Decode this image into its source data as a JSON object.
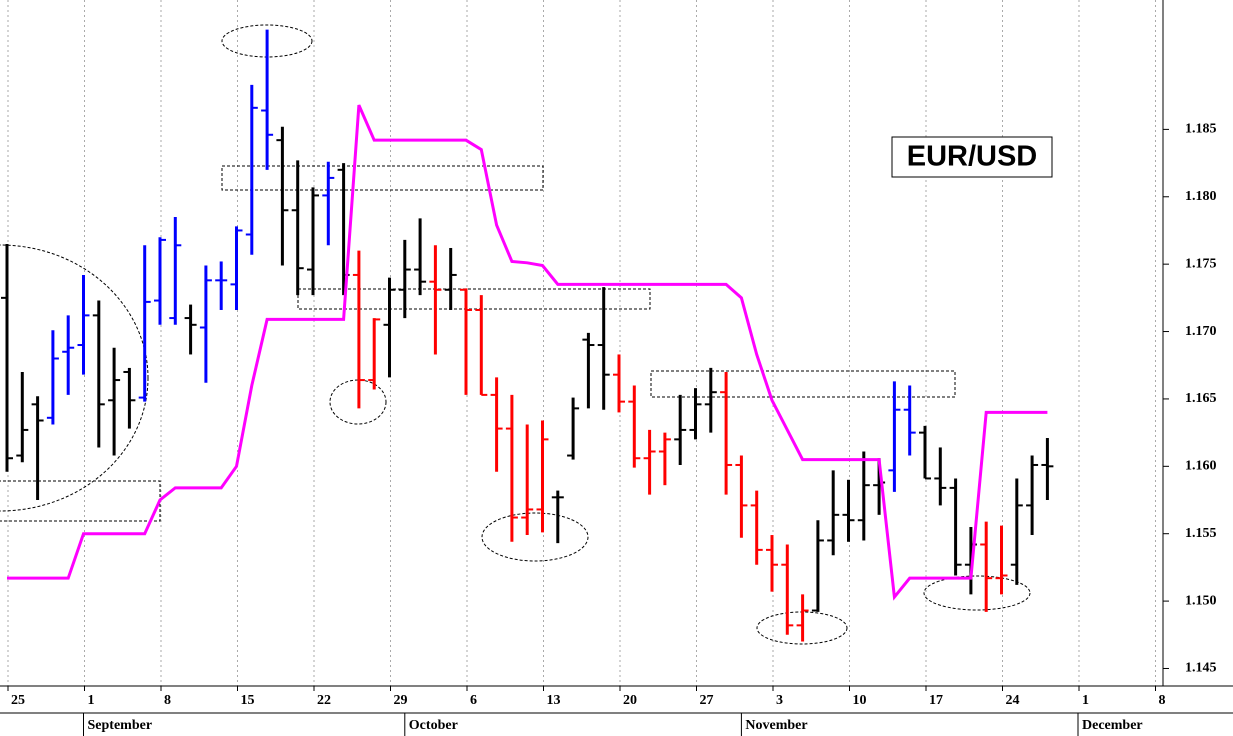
{
  "chart_data": {
    "type": "ohlc",
    "title": "EUR/USD",
    "categories": [
      "25",
      null,
      null,
      null,
      null,
      "1",
      null,
      null,
      null,
      null,
      "8",
      null,
      null,
      null,
      null,
      "15",
      null,
      null,
      null,
      null,
      "22",
      null,
      null,
      null,
      null,
      "29",
      null,
      null,
      null,
      null,
      "6",
      null,
      null,
      null,
      null,
      "13",
      null,
      null,
      null,
      null,
      "20",
      null,
      null,
      null,
      null,
      "27",
      null,
      null,
      null,
      null,
      "3",
      null,
      null,
      null,
      null,
      "10",
      null,
      null,
      null,
      null,
      "17",
      null,
      null,
      null,
      null,
      "24",
      null,
      null,
      null,
      null,
      "1",
      null,
      null,
      null,
      null,
      "8"
    ],
    "months": [
      null,
      null,
      null,
      null,
      null,
      "September",
      null,
      null,
      null,
      null,
      null,
      null,
      null,
      null,
      null,
      null,
      null,
      null,
      null,
      null,
      null,
      null,
      null,
      null,
      null,
      null,
      "October",
      null,
      null,
      null,
      null,
      null,
      null,
      null,
      null,
      null,
      null,
      null,
      null,
      null,
      null,
      null,
      null,
      null,
      null,
      null,
      null,
      null,
      "November",
      null,
      null,
      null,
      null,
      null,
      null,
      null,
      null,
      null,
      null,
      null,
      null,
      null,
      null,
      null,
      null,
      null,
      null,
      null,
      null,
      null,
      "December",
      null,
      null,
      null,
      null,
      null
    ],
    "open": [
      1.1725,
      1.1608,
      1.1646,
      1.1636,
      1.1685,
      1.169,
      1.1712,
      1.1649,
      1.167,
      1.1651,
      1.1723,
      1.171,
      1.171,
      1.1703,
      1.1738,
      1.1735,
      1.1772,
      1.1864,
      1.1842,
      1.179,
      1.1746,
      1.1801,
      1.182,
      1.1742,
      1.1664,
      1.1705,
      1.1731,
      1.1746,
      1.1737,
      1.1731,
      1.1731,
      1.1716,
      1.1653,
      1.1628,
      1.1562,
      1.1568,
      1.1577,
      1.1608,
      1.1694,
      1.169,
      1.1668,
      1.1648,
      1.1606,
      1.1611,
      1.162,
      1.1627,
      1.1646,
      1.1655,
      1.1601,
      1.1571,
      1.1538,
      1.1527,
      1.1482,
      1.1493,
      1.1545,
      1.1564,
      1.156,
      1.1586,
      1.1597,
      1.1642,
      1.1625,
      1.1591,
      1.1584,
      1.1527,
      1.1542,
      1.1517,
      1.1527,
      1.1571,
      1.1601,
      null,
      null,
      null,
      null,
      null,
      null,
      null
    ],
    "high": [
      1.1765,
      1.167,
      1.1652,
      1.1701,
      1.1712,
      1.1742,
      1.1723,
      1.1688,
      1.1673,
      1.1764,
      1.177,
      1.1785,
      1.172,
      1.1749,
      1.1752,
      1.1778,
      1.1883,
      1.1924,
      1.1852,
      1.1827,
      1.1807,
      1.1826,
      1.1825,
      1.176,
      1.171,
      1.174,
      1.1768,
      1.1784,
      1.1764,
      1.1762,
      1.1732,
      1.1727,
      1.1666,
      1.1653,
      1.1631,
      1.1634,
      1.1582,
      1.1651,
      1.1699,
      1.1733,
      1.1683,
      1.166,
      1.1627,
      1.1625,
      1.1653,
      1.1658,
      1.1673,
      1.167,
      1.1608,
      1.1582,
      1.1549,
      1.1542,
      1.1505,
      1.156,
      1.1597,
      1.159,
      1.1611,
      1.1606,
      1.1663,
      1.166,
      1.163,
      1.1614,
      1.1591,
      1.1555,
      1.1559,
      1.1556,
      1.1591,
      1.1608,
      1.1621,
      null,
      null,
      null,
      null,
      null,
      null,
      null
    ],
    "low": [
      1.1596,
      1.1603,
      1.1575,
      1.1631,
      1.1653,
      1.1668,
      1.1614,
      1.1608,
      1.1628,
      1.1648,
      1.1705,
      1.1705,
      1.1683,
      1.1662,
      1.1716,
      1.1716,
      1.1757,
      1.182,
      1.1749,
      1.1727,
      1.1727,
      1.1764,
      1.1727,
      1.1643,
      1.1657,
      1.1666,
      1.171,
      1.1727,
      1.1683,
      1.1716,
      1.1653,
      1.1653,
      1.1596,
      1.1544,
      1.1549,
      1.1551,
      1.1543,
      1.1605,
      1.1643,
      1.1642,
      1.164,
      1.1599,
      1.1579,
      1.1586,
      1.1601,
      1.162,
      1.1625,
      1.1579,
      1.1547,
      1.1527,
      1.1507,
      1.1475,
      1.147,
      1.1492,
      1.1534,
      1.1544,
      1.1545,
      1.1564,
      1.1581,
      1.1608,
      1.1591,
      1.1571,
      1.1519,
      1.1505,
      1.1492,
      1.1505,
      1.1512,
      1.1549,
      1.1575,
      null,
      null,
      null,
      null,
      null,
      null,
      null
    ],
    "close": [
      1.1606,
      1.1627,
      1.1634,
      1.168,
      1.1688,
      1.1712,
      1.1646,
      1.1664,
      1.1649,
      1.1722,
      1.1768,
      1.1764,
      1.1705,
      1.1738,
      1.1738,
      1.1775,
      1.1866,
      1.1846,
      1.179,
      1.1747,
      1.1801,
      1.1814,
      1.1742,
      1.1664,
      1.1709,
      1.1731,
      1.1746,
      1.1737,
      1.1731,
      1.1742,
      1.1716,
      1.1653,
      1.1628,
      1.1562,
      1.1568,
      1.162,
      1.1577,
      1.1643,
      1.169,
      1.1668,
      1.1648,
      1.1606,
      1.1611,
      1.162,
      1.1627,
      1.1646,
      1.1655,
      1.1601,
      1.1571,
      1.1538,
      1.1527,
      1.1482,
      1.1493,
      1.1545,
      1.1564,
      1.156,
      1.1586,
      1.1588,
      1.1642,
      1.1625,
      1.1591,
      1.1584,
      1.1527,
      1.1542,
      1.1517,
      1.1519,
      1.1571,
      1.1601,
      1.16,
      null,
      null,
      null,
      null,
      null,
      null,
      null
    ],
    "bar_colors": [
      "#000000",
      "#000000",
      "#000000",
      "#0000ff",
      "#0000ff",
      "#0000ff",
      "#000000",
      "#000000",
      "#000000",
      "#0000ff",
      "#0000ff",
      "#0000ff",
      "#000000",
      "#0000ff",
      "#0000ff",
      "#0000ff",
      "#0000ff",
      "#0000ff",
      "#000000",
      "#000000",
      "#000000",
      "#0000ff",
      "#000000",
      "#ff0000",
      "#ff0000",
      "#000000",
      "#000000",
      "#000000",
      "#ff0000",
      "#000000",
      "#ff0000",
      "#ff0000",
      "#ff0000",
      "#ff0000",
      "#ff0000",
      "#ff0000",
      "#000000",
      "#000000",
      "#000000",
      "#000000",
      "#ff0000",
      "#ff0000",
      "#ff0000",
      "#ff0000",
      "#000000",
      "#000000",
      "#000000",
      "#ff0000",
      "#ff0000",
      "#ff0000",
      "#ff0000",
      "#ff0000",
      "#ff0000",
      "#000000",
      "#000000",
      "#000000",
      "#000000",
      "#000000",
      "#0000ff",
      "#0000ff",
      "#000000",
      "#000000",
      "#000000",
      "#000000",
      "#ff0000",
      "#ff0000",
      "#000000",
      "#000000",
      "#000000",
      null,
      null,
      null,
      null,
      null,
      null,
      null
    ],
    "stop_line": {
      "color": "#ff00ff",
      "values": [
        1.1517,
        1.1517,
        1.1517,
        1.1517,
        1.1517,
        1.155,
        1.155,
        1.155,
        1.155,
        1.155,
        1.1575,
        1.1584,
        1.1584,
        1.1584,
        1.1584,
        1.16,
        1.166,
        1.1709,
        1.1709,
        1.1709,
        1.1709,
        1.1709,
        1.1709,
        1.1868,
        1.1842,
        1.1842,
        1.1842,
        1.1842,
        1.1842,
        1.1842,
        1.1842,
        1.1835,
        1.1779,
        1.1752,
        1.1751,
        1.1749,
        1.1735,
        1.1735,
        1.1735,
        1.1735,
        1.1735,
        1.1735,
        1.1735,
        1.1735,
        1.1735,
        1.1735,
        1.1735,
        1.1735,
        1.1725,
        1.1683,
        1.1649,
        1.1627,
        1.1605,
        1.1605,
        1.1605,
        1.1605,
        1.1605,
        1.1605,
        1.1503,
        1.1517,
        1.1517,
        1.1517,
        1.1517,
        1.1517,
        1.164,
        1.164,
        1.164,
        1.164,
        1.164,
        null,
        null,
        null,
        null,
        null,
        null,
        null
      ]
    },
    "ylim": [
      1.1437,
      1.1946
    ],
    "yticks": [
      1.145,
      {
        "value": 1.15,
        "label": "1.150"
      },
      1.155,
      {
        "value": 1.16,
        "label": "1.160"
      },
      1.165,
      {
        "value": 1.17,
        "label": "1.170"
      },
      1.175,
      {
        "value": 1.18,
        "label": "1.180"
      },
      1.185
    ],
    "grid": true
  }
}
